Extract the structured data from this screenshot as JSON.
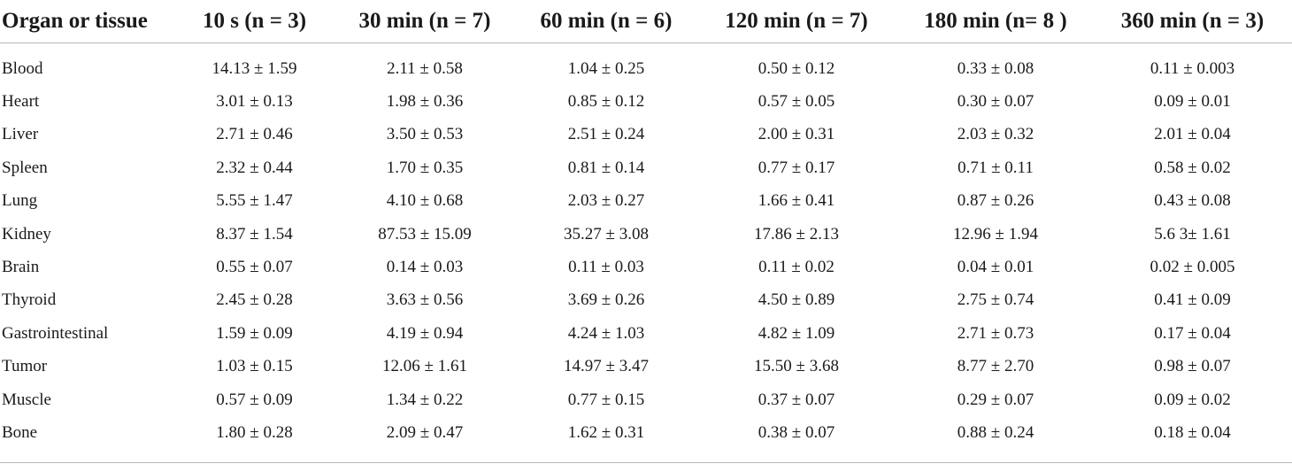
{
  "table": {
    "headers": [
      "Organ or tissue",
      "10 s (n = 3)",
      "30 min (n = 7)",
      "60 min (n = 6)",
      "120 min (n = 7)",
      "180 min (n= 8 )",
      "360 min (n = 3)"
    ],
    "rows": [
      [
        "Blood",
        "14.13 ± 1.59",
        "2.11 ± 0.58",
        "1.04 ± 0.25",
        "0.50 ± 0.12",
        "0.33 ± 0.08",
        "0.11 ± 0.003"
      ],
      [
        "Heart",
        "3.01 ± 0.13",
        "1.98 ± 0.36",
        "0.85 ± 0.12",
        "0.57 ± 0.05",
        "0.30 ± 0.07",
        "0.09 ± 0.01"
      ],
      [
        "Liver",
        "2.71 ± 0.46",
        "3.50 ± 0.53",
        "2.51 ± 0.24",
        "2.00 ± 0.31",
        "2.03 ± 0.32",
        "2.01 ± 0.04"
      ],
      [
        "Spleen",
        "2.32 ± 0.44",
        "1.70 ± 0.35",
        "0.81 ± 0.14",
        "0.77 ± 0.17",
        "0.71 ± 0.11",
        "0.58 ± 0.02"
      ],
      [
        "Lung",
        "5.55 ± 1.47",
        "4.10 ± 0.68",
        "2.03 ± 0.27",
        "1.66 ± 0.41",
        "0.87 ± 0.26",
        "0.43 ± 0.08"
      ],
      [
        "Kidney",
        "8.37 ± 1.54",
        "87.53 ± 15.09",
        "35.27 ± 3.08",
        "17.86 ± 2.13",
        "12.96 ± 1.94",
        "5.6 3± 1.61"
      ],
      [
        "Brain",
        "0.55 ± 0.07",
        "0.14 ± 0.03",
        "0.11 ± 0.03",
        "0.11 ± 0.02",
        "0.04 ± 0.01",
        "0.02 ± 0.005"
      ],
      [
        "Thyroid",
        "2.45 ± 0.28",
        "3.63 ± 0.56",
        "3.69 ± 0.26",
        "4.50 ± 0.89",
        "2.75 ± 0.74",
        "0.41 ± 0.09"
      ],
      [
        "Gastrointestinal",
        "1.59 ± 0.09",
        "4.19 ± 0.94",
        "4.24 ± 1.03",
        "4.82 ± 1.09",
        "2.71 ± 0.73",
        "0.17 ± 0.04"
      ],
      [
        "Tumor",
        "1.03 ± 0.15",
        "12.06 ± 1.61",
        "14.97 ± 3.47",
        "15.50 ± 3.68",
        "8.77 ± 2.70",
        "0.98 ± 0.07"
      ],
      [
        "Muscle",
        "0.57 ± 0.09",
        "1.34 ± 0.22",
        "0.77 ± 0.15",
        "0.37 ± 0.07",
        "0.29 ± 0.07",
        "0.09 ± 0.02"
      ],
      [
        "Bone",
        "1.80 ± 0.28",
        "2.09 ± 0.47",
        "1.62 ± 0.31",
        "0.38 ± 0.07",
        "0.88 ± 0.24",
        "0.18 ± 0.04"
      ]
    ]
  }
}
